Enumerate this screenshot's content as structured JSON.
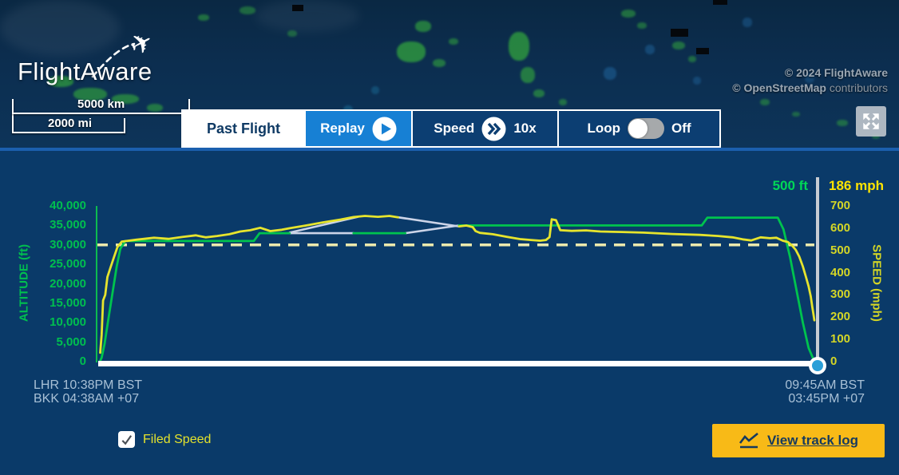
{
  "header": {
    "logo_text": "FlightAware",
    "copyright_line1": "© 2024 FlightAware",
    "copyright_line2_bold": "© OpenStreetMap",
    "copyright_line2_rest": " contributors",
    "scale_km": "5000 km",
    "scale_mi": "2000 mi"
  },
  "tabs": {
    "past_flight": "Past Flight",
    "replay": "Replay",
    "speed_label": "Speed",
    "speed_value": "10x",
    "loop_label": "Loop",
    "loop_state": "Off"
  },
  "colors": {
    "accent_blue": "#1780d4",
    "panel_navy": "#0a3a69",
    "altitude_green": "#00c34e",
    "speed_yellow": "#e6e42d",
    "estimated_gray": "#ccd4e8",
    "filed_dash_yellow": "#ece9ad",
    "cursor_value_green": "#00d757",
    "cursor_value_yellow": "#ffe400",
    "button_yellow": "#f8ba17",
    "scrubber_blue": "#2a9fd8"
  },
  "chart_data": {
    "type": "line",
    "title": "Altitude and speed profile",
    "y_left": {
      "label": "ALTITUDE (ft)",
      "max": 40000,
      "ticks": [
        "40,000",
        "35,000",
        "30,000",
        "25,000",
        "20,000",
        "15,000",
        "10,000",
        "5,000",
        "0"
      ]
    },
    "y_right": {
      "label": "SPEED (mph)",
      "max": 700,
      "ticks": [
        "700",
        "600",
        "500",
        "400",
        "300",
        "200",
        "100",
        "0"
      ]
    },
    "cursor": {
      "altitude_label": "500 ft",
      "speed_label": "186 mph",
      "x_fraction": 1.0
    },
    "filed_speed_mph": 525,
    "x_axis": {
      "start_line1": "LHR 10:38PM BST",
      "start_line2": "BKK 04:38AM +07",
      "end_line1": "09:45AM BST",
      "end_line2": "03:45PM +07"
    },
    "series": [
      {
        "name": "altitude-estimated",
        "axis": "left",
        "color": "#ccd4e8",
        "width": 2.6,
        "segments": [
          [
            [
              0.269,
              33000
            ],
            [
              0.358,
              33000
            ]
          ],
          [
            [
              0.43,
              33000
            ],
            [
              0.505,
              35000
            ]
          ]
        ]
      },
      {
        "name": "speed-estimated",
        "axis": "right",
        "color": "#ccd4e8",
        "width": 2.6,
        "segments": [
          [
            [
              0.269,
              580
            ],
            [
              0.364,
              651
            ]
          ],
          [
            [
              0.42,
              649
            ],
            [
              0.505,
              608
            ]
          ]
        ]
      },
      {
        "name": "altitude-ft",
        "axis": "left",
        "color": "#00c34e",
        "width": 2.8,
        "segments": [
          [
            [
              0.0045,
              0
            ],
            [
              0.007,
              1000
            ],
            [
              0.011,
              4500
            ],
            [
              0.016,
              10500
            ],
            [
              0.022,
              17500
            ],
            [
              0.028,
              24500
            ],
            [
              0.033,
              29000
            ],
            [
              0.04,
              31000
            ],
            [
              0.219,
              31000
            ],
            [
              0.227,
              33000
            ],
            [
              0.269,
              33000
            ]
          ],
          [
            [
              0.358,
              33000
            ],
            [
              0.43,
              33000
            ]
          ],
          [
            [
              0.505,
              35000
            ],
            [
              0.843,
              35000
            ],
            [
              0.851,
              37000
            ],
            [
              0.949,
              37000
            ],
            [
              0.957,
              34000
            ],
            [
              0.966,
              27000
            ],
            [
              0.975,
              18500
            ],
            [
              0.984,
              10000
            ],
            [
              0.992,
              3500
            ],
            [
              0.998,
              900
            ],
            [
              1.0,
              500
            ]
          ]
        ]
      },
      {
        "name": "speed-mph",
        "axis": "right",
        "color": "#e6e42d",
        "width": 2.8,
        "segments": [
          [
            [
              0.005,
              40
            ],
            [
              0.007,
              120
            ],
            [
              0.009,
              275
            ],
            [
              0.012,
              300
            ],
            [
              0.015,
              380
            ],
            [
              0.019,
              420
            ],
            [
              0.024,
              468
            ],
            [
              0.029,
              515
            ],
            [
              0.035,
              540
            ],
            [
              0.055,
              548
            ],
            [
              0.08,
              557
            ],
            [
              0.1,
              552
            ],
            [
              0.12,
              561
            ],
            [
              0.138,
              568
            ],
            [
              0.152,
              559
            ],
            [
              0.168,
              565
            ],
            [
              0.185,
              573
            ],
            [
              0.2,
              585
            ],
            [
              0.214,
              591
            ],
            [
              0.228,
              602
            ],
            [
              0.242,
              587
            ],
            [
              0.258,
              593
            ],
            [
              0.269,
              600
            ],
            [
              0.29,
              611
            ],
            [
              0.315,
              626
            ],
            [
              0.34,
              639
            ],
            [
              0.358,
              650
            ],
            [
              0.374,
              655
            ],
            [
              0.392,
              651
            ],
            [
              0.408,
              655
            ],
            [
              0.42,
              649
            ]
          ],
          [
            [
              0.505,
              608
            ],
            [
              0.515,
              612
            ],
            [
              0.524,
              605
            ],
            [
              0.528,
              587
            ],
            [
              0.534,
              579
            ],
            [
              0.552,
              573
            ],
            [
              0.572,
              561
            ],
            [
              0.59,
              551
            ],
            [
              0.605,
              547
            ],
            [
              0.618,
              544
            ],
            [
              0.626,
              547
            ],
            [
              0.631,
              560
            ],
            [
              0.634,
              640
            ],
            [
              0.64,
              636
            ],
            [
              0.646,
              591
            ],
            [
              0.662,
              588
            ],
            [
              0.682,
              590
            ],
            [
              0.702,
              585
            ],
            [
              0.732,
              583
            ],
            [
              0.762,
              580
            ],
            [
              0.802,
              574
            ],
            [
              0.84,
              570
            ],
            [
              0.866,
              565
            ],
            [
              0.886,
              559
            ],
            [
              0.9,
              550
            ],
            [
              0.912,
              545
            ],
            [
              0.925,
              559
            ],
            [
              0.938,
              555
            ],
            [
              0.947,
              557
            ],
            [
              0.956,
              544
            ],
            [
              0.963,
              538
            ],
            [
              0.969,
              522
            ],
            [
              0.974,
              503
            ],
            [
              0.979,
              472
            ],
            [
              0.984,
              428
            ],
            [
              0.988,
              384
            ],
            [
              0.992,
              338
            ],
            [
              0.995,
              293
            ],
            [
              0.997,
              248
            ],
            [
              0.999,
              208
            ],
            [
              1.0,
              186
            ]
          ]
        ]
      }
    ]
  },
  "footer": {
    "filed_speed_label": "Filed Speed",
    "filed_speed_checked": true,
    "view_track_log": "View track log"
  }
}
